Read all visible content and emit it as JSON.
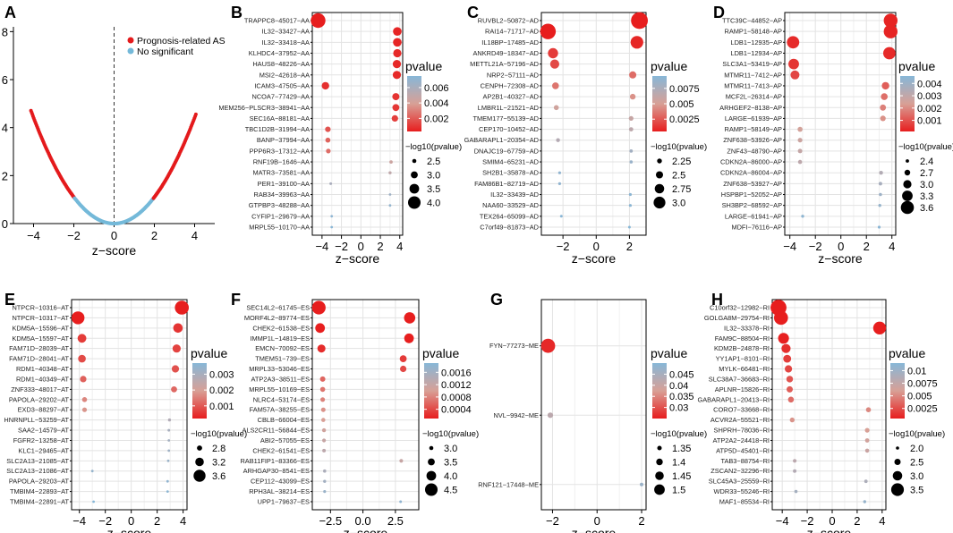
{
  "figure": {
    "legend_title": "pvalue",
    "size_title": "−log10(pvalue)",
    "xlabel": "z−score"
  },
  "chart_data": [
    {
      "panel": "A",
      "type": "scatter",
      "title": "A",
      "xlabel": "z−score",
      "ylabel": "",
      "xlim": [
        -5,
        5
      ],
      "ylim": [
        0,
        8.2
      ],
      "xticks": [
        -4,
        -2,
        0,
        2,
        4
      ],
      "yticks": [
        0,
        2,
        4,
        6,
        8
      ],
      "legend": [
        {
          "label": "Prognosis-related AS",
          "color": "#e41a1c"
        },
        {
          "label": "No significant",
          "color": "#74b9d9"
        }
      ],
      "curve": {
        "formula": "y = 0.276 * x^2",
        "left_extreme_x": -4.13,
        "right_extreme_x": 4.08,
        "threshold": 1.96
      }
    },
    {
      "panel": "B",
      "type": "scatter",
      "title": "B",
      "xlabel": "z−score",
      "xlim": [
        -5,
        4.3
      ],
      "xticks": [
        -4,
        -2,
        0,
        2,
        4
      ],
      "xtick_labels": [
        "−4",
        "−2",
        "0",
        "2",
        "4"
      ],
      "pvalue_ticks": [
        0.006,
        0.004,
        0.002
      ],
      "pvalue_range": [
        0.0003,
        0.0075
      ],
      "size_ticks": [
        2.5,
        3.0,
        3.5,
        4.0
      ],
      "size_range": [
        2.2,
        4.4
      ],
      "points": [
        {
          "label": "TRAPPC8−45017−AA",
          "z": -4.4,
          "p": 4e-05
        },
        {
          "label": "IL32−33427−AA",
          "z": 3.75,
          "p": 0.0005
        },
        {
          "label": "IL32−33418−AA",
          "z": 3.75,
          "p": 0.0005
        },
        {
          "label": "KLHDC4−37952−AA",
          "z": 3.75,
          "p": 0.0006
        },
        {
          "label": "HAUS8−48226−AA",
          "z": 3.7,
          "p": 0.0006
        },
        {
          "label": "MSI2−42618−AA",
          "z": 3.7,
          "p": 0.0006
        },
        {
          "label": "ICAM3−47505−AA",
          "z": -3.65,
          "p": 0.0008
        },
        {
          "label": "NCOA7−77429−AA",
          "z": 3.6,
          "p": 0.0009
        },
        {
          "label": "MEM256−PLSCR3−38941−AA",
          "z": 3.6,
          "p": 0.001
        },
        {
          "label": "SEC16A−88181−AA",
          "z": 3.5,
          "p": 0.0012
        },
        {
          "label": "TBC1D2B−31994−AA",
          "z": -3.4,
          "p": 0.0018
        },
        {
          "label": "BANP−37994−AA",
          "z": -3.4,
          "p": 0.0022
        },
        {
          "label": "PPP6R3−17312−AA",
          "z": -3.35,
          "p": 0.0025
        },
        {
          "label": "RNF19B−1646−AA",
          "z": 3.1,
          "p": 0.0045
        },
        {
          "label": "MATR3−73581−AA",
          "z": 3.0,
          "p": 0.005
        },
        {
          "label": "PER1−39100−AA",
          "z": -3.1,
          "p": 0.006
        },
        {
          "label": "RAB34−39963−AA",
          "z": 3.0,
          "p": 0.0065
        },
        {
          "label": "GTPBP3−48288−AA",
          "z": 3.0,
          "p": 0.007
        },
        {
          "label": "CYFIP1−29679−AA",
          "z": -3.0,
          "p": 0.0072
        },
        {
          "label": "MRPL55−10170−AA",
          "z": -3.0,
          "p": 0.0074
        }
      ]
    },
    {
      "panel": "C",
      "type": "scatter",
      "title": "C",
      "xlabel": "z−score",
      "xlim": [
        -3.3,
        3.0
      ],
      "xticks": [
        -2,
        0,
        2
      ],
      "xtick_labels": [
        "−2",
        "0",
        "2"
      ],
      "pvalue_ticks": [
        0.0075,
        0.005,
        0.0025
      ],
      "pvalue_range": [
        0.0005,
        0.0095
      ],
      "size_ticks": [
        2.25,
        2.5,
        2.75,
        3.0
      ],
      "size_range": [
        2.0,
        3.3
      ],
      "points": [
        {
          "label": "RUVBL2−50872−AD",
          "z": 2.6,
          "p": 0.0003
        },
        {
          "label": "RAI14−71717−AD",
          "z": -2.9,
          "p": 0.0004
        },
        {
          "label": "IL18BP−17485−AD",
          "z": 2.45,
          "p": 0.0008
        },
        {
          "label": "ANKRD49−18347−AD",
          "z": -2.6,
          "p": 0.0015
        },
        {
          "label": "METTL21A−57196−AD",
          "z": -2.5,
          "p": 0.002
        },
        {
          "label": "NRP2−57111−AD",
          "z": 2.2,
          "p": 0.0032
        },
        {
          "label": "CENPH−72308−AD",
          "z": -2.45,
          "p": 0.0035
        },
        {
          "label": "AP2B1−40327−AD",
          "z": 2.2,
          "p": 0.0045
        },
        {
          "label": "LMBR1L−21521−AD",
          "z": -2.4,
          "p": 0.0055
        },
        {
          "label": "TMEM177−55139−AD",
          "z": 2.1,
          "p": 0.006
        },
        {
          "label": "CEP170−10452−AD",
          "z": 2.1,
          "p": 0.0065
        },
        {
          "label": "GABARAPL1−20354−AD",
          "z": -2.3,
          "p": 0.007
        },
        {
          "label": "DNAJC19−67759−AD",
          "z": 2.1,
          "p": 0.008
        },
        {
          "label": "SMIM4−65231−AD",
          "z": 2.1,
          "p": 0.0085
        },
        {
          "label": "SH2B1−35878−AD",
          "z": -2.2,
          "p": 0.009
        },
        {
          "label": "FAM86B1−82719−AD",
          "z": -2.2,
          "p": 0.009
        },
        {
          "label": "IL32−33439−AD",
          "z": 2.05,
          "p": 0.0092
        },
        {
          "label": "NAA60−33529−AD",
          "z": 2.05,
          "p": 0.0093
        },
        {
          "label": "TEX264−65099−AD",
          "z": -2.1,
          "p": 0.0094
        },
        {
          "label": "C7orf49−81873−AD",
          "z": 2.0,
          "p": 0.0095
        }
      ]
    },
    {
      "panel": "D",
      "type": "scatter",
      "title": "D",
      "xlabel": "z−score",
      "xlim": [
        -4.4,
        4.3
      ],
      "xticks": [
        -4,
        -2,
        0,
        2,
        4
      ],
      "xtick_labels": [
        "−4",
        "−2",
        "0",
        "2",
        "4"
      ],
      "pvalue_ticks": [
        0.004,
        0.003,
        0.002,
        0.001
      ],
      "pvalue_range": [
        0.0001,
        0.0046
      ],
      "size_ticks": [
        2.4,
        2.7,
        3.0,
        3.3,
        3.6
      ],
      "size_range": [
        2.3,
        3.8
      ],
      "points": [
        {
          "label": "TTC39C−44852−AP",
          "z": 3.9,
          "p": 0.0002
        },
        {
          "label": "RAMP1−58148−AP",
          "z": 3.9,
          "p": 0.0002
        },
        {
          "label": "LDB1−12935−AP",
          "z": -3.75,
          "p": 0.0003
        },
        {
          "label": "LDB1−12934−AP",
          "z": 3.8,
          "p": 0.0003
        },
        {
          "label": "SLC3A1−53419−AP",
          "z": -3.7,
          "p": 0.0005
        },
        {
          "label": "MTMR11−7412−AP",
          "z": -3.6,
          "p": 0.0008
        },
        {
          "label": "MTMR11−7413−AP",
          "z": 3.5,
          "p": 0.0012
        },
        {
          "label": "MCF2L−26314−AP",
          "z": 3.4,
          "p": 0.0015
        },
        {
          "label": "ARHGEF2−8138−AP",
          "z": 3.3,
          "p": 0.0018
        },
        {
          "label": "LARGE−61939−AP",
          "z": 3.3,
          "p": 0.0021
        },
        {
          "label": "RAMP1−58149−AP",
          "z": -3.2,
          "p": 0.0025
        },
        {
          "label": "ZNF638−53926−AP",
          "z": -3.2,
          "p": 0.0027
        },
        {
          "label": "ZNF43−48790−AP",
          "z": -3.2,
          "p": 0.0029
        },
        {
          "label": "CDKN2A−86000−AP",
          "z": -3.2,
          "p": 0.0031
        },
        {
          "label": "CDKN2A−86004−AP",
          "z": 3.15,
          "p": 0.0034
        },
        {
          "label": "ZNF638−53927−AP",
          "z": 3.1,
          "p": 0.0037
        },
        {
          "label": "HSPBP1−52052−AP",
          "z": 3.1,
          "p": 0.004
        },
        {
          "label": "SH3BP2−68592−AP",
          "z": 3.05,
          "p": 0.0042
        },
        {
          "label": "LARGE−61941−AP",
          "z": -3.0,
          "p": 0.0044
        },
        {
          "label": "MDFI−76116−AP",
          "z": 3.0,
          "p": 0.0045
        }
      ]
    },
    {
      "panel": "E",
      "type": "scatter",
      "title": "E",
      "xlabel": "z−score",
      "xlim": [
        -4.6,
        4.3
      ],
      "xticks": [
        -4,
        -2,
        0,
        2,
        4
      ],
      "xtick_labels": [
        "−4",
        "−2",
        "0",
        "2",
        "4"
      ],
      "pvalue_ticks": [
        0.003,
        0.002,
        0.001
      ],
      "pvalue_range": [
        0.0002,
        0.0037
      ],
      "size_ticks": [
        2.8,
        3.2,
        3.6
      ],
      "size_range": [
        2.5,
        3.9
      ],
      "points": [
        {
          "label": "NTPCR−10316−AT",
          "z": 3.9,
          "p": 0.00015
        },
        {
          "label": "NTPCR−10317−AT",
          "z": -4.1,
          "p": 0.0002
        },
        {
          "label": "KDM5A−15596−AT",
          "z": 3.6,
          "p": 0.0005
        },
        {
          "label": "KDM5A−15597−AT",
          "z": -3.8,
          "p": 0.0006
        },
        {
          "label": "FAM71D−28039−AT",
          "z": 3.5,
          "p": 0.0007
        },
        {
          "label": "FAM71D−28041−AT",
          "z": -3.8,
          "p": 0.0008
        },
        {
          "label": "RDM1−40348−AT",
          "z": 3.4,
          "p": 0.0009
        },
        {
          "label": "RDM1−40349−AT",
          "z": -3.7,
          "p": 0.0011
        },
        {
          "label": "ZNF333−48017−AT",
          "z": 3.3,
          "p": 0.0012
        },
        {
          "label": "PAPOLA−29202−AT",
          "z": -3.6,
          "p": 0.0016
        },
        {
          "label": "EXD3−88297−AT",
          "z": -3.6,
          "p": 0.0018
        },
        {
          "label": "HNRNPLL−53259−AT",
          "z": 2.95,
          "p": 0.0028
        },
        {
          "label": "SAA2−14579−AT",
          "z": 2.9,
          "p": 0.003
        },
        {
          "label": "FGFR2−13258−AT",
          "z": 2.9,
          "p": 0.0031
        },
        {
          "label": "KLC1−29465−AT",
          "z": 2.9,
          "p": 0.0032
        },
        {
          "label": "SLC2A13−21085−AT",
          "z": 2.85,
          "p": 0.0033
        },
        {
          "label": "SLC2A13−21086−AT",
          "z": -3.0,
          "p": 0.0034
        },
        {
          "label": "PAPOLA−29203−AT",
          "z": 2.8,
          "p": 0.0035
        },
        {
          "label": "TMBIM4−22893−AT",
          "z": 2.8,
          "p": 0.0036
        },
        {
          "label": "TMBIM4−22891−AT",
          "z": -2.9,
          "p": 0.0037
        }
      ]
    },
    {
      "panel": "F",
      "type": "scatter",
      "title": "F",
      "xlabel": "z−score",
      "xlim": [
        -3.9,
        4.3
      ],
      "xticks": [
        -2.5,
        0.0,
        2.5
      ],
      "xtick_labels": [
        "−2.5",
        "0.0",
        "2.5"
      ],
      "pvalue_ticks": [
        0.0016,
        0.0012,
        0.0008,
        0.0004
      ],
      "pvalue_range": [
        0.0001,
        0.0019
      ],
      "size_ticks": [
        3.0,
        3.5,
        4.0,
        4.5
      ],
      "size_range": [
        2.7,
        4.9
      ],
      "points": [
        {
          "label": "SEC14L2−61745−ES",
          "z": -3.4,
          "p": 2e-05
        },
        {
          "label": "MORF4L2−89774−ES",
          "z": 3.6,
          "p": 5e-05
        },
        {
          "label": "CHEK2−61538−ES",
          "z": -3.3,
          "p": 0.0001
        },
        {
          "label": "IMMP1L−14819−ES",
          "z": 3.55,
          "p": 0.0001
        },
        {
          "label": "EMCN−70092−ES",
          "z": -3.2,
          "p": 0.0002
        },
        {
          "label": "TMEM51−739−ES",
          "z": 3.1,
          "p": 0.0003
        },
        {
          "label": "MRPL33−53046−ES",
          "z": 3.1,
          "p": 0.0004
        },
        {
          "label": "ATP2A3−38511−ES",
          "z": -3.1,
          "p": 0.0006
        },
        {
          "label": "MRPL55−10169−ES",
          "z": -3.1,
          "p": 0.0007
        },
        {
          "label": "NLRC4−53174−ES",
          "z": -3.1,
          "p": 0.0008
        },
        {
          "label": "FAM57A−38255−ES",
          "z": -3.05,
          "p": 0.0009
        },
        {
          "label": "CBLB−66004−ES",
          "z": -3.05,
          "p": 0.001
        },
        {
          "label": "ALS2CR11−56844−ES",
          "z": -3.0,
          "p": 0.0011
        },
        {
          "label": "ABI2−57055−ES",
          "z": -3.0,
          "p": 0.0012
        },
        {
          "label": "CHEK2−61541−ES",
          "z": -3.0,
          "p": 0.0013
        },
        {
          "label": "RAB11FIP1−83366−ES",
          "z": 2.95,
          "p": 0.0012
        },
        {
          "label": "ARHGAP30−8541−ES",
          "z": -2.95,
          "p": 0.0015
        },
        {
          "label": "CEP112−43099−ES",
          "z": -2.95,
          "p": 0.0016
        },
        {
          "label": "RPH3AL−38214−ES",
          "z": -2.95,
          "p": 0.0017
        },
        {
          "label": "UPP1−79637−ES",
          "z": 2.9,
          "p": 0.0018
        }
      ]
    },
    {
      "panel": "G",
      "type": "scatter",
      "title": "G",
      "xlabel": "z−score",
      "xlim": [
        -2.5,
        2.2
      ],
      "xticks": [
        -2,
        0,
        2
      ],
      "xtick_labels": [
        "−2",
        "0",
        "2"
      ],
      "pvalue_ticks": [
        0.045,
        0.04,
        0.035,
        0.03
      ],
      "pvalue_range": [
        0.025,
        0.05
      ],
      "size_ticks": [
        1.35,
        1.4,
        1.45,
        1.5
      ],
      "size_range": [
        1.3,
        1.6
      ],
      "points": [
        {
          "label": "FYN−77273−ME",
          "z": -2.2,
          "p": 0.026
        },
        {
          "label": "NVL−9942−ME",
          "z": -2.1,
          "p": 0.042
        },
        {
          "label": "RNF121−17448−ME",
          "z": 2.0,
          "p": 0.047
        }
      ]
    },
    {
      "panel": "H",
      "type": "scatter",
      "title": "H",
      "xlabel": "z−score",
      "xlim": [
        -4.8,
        4.3
      ],
      "xticks": [
        -4,
        -2,
        0,
        2,
        4
      ],
      "xtick_labels": [
        "−4",
        "−2",
        "0",
        "2",
        "4"
      ],
      "pvalue_ticks": [
        0.01,
        0.0075,
        0.005,
        0.0025
      ],
      "pvalue_range": [
        0.0005,
        0.0115
      ],
      "size_ticks": [
        2.0,
        2.5,
        3.0,
        3.5
      ],
      "size_range": [
        1.9,
        3.8
      ],
      "points": [
        {
          "label": "C10orf32−12982−RI",
          "z": -4.3,
          "p": 0.0001
        },
        {
          "label": "GOLGA8M−29754−RI",
          "z": -4.1,
          "p": 0.0002
        },
        {
          "label": "IL32−33378−RI",
          "z": 3.8,
          "p": 0.0003
        },
        {
          "label": "FAM9C−88504−RI",
          "z": -3.9,
          "p": 0.0006
        },
        {
          "label": "KDM2B−24878−RI",
          "z": -3.7,
          "p": 0.0012
        },
        {
          "label": "YY1AP1−8101−RI",
          "z": -3.6,
          "p": 0.0018
        },
        {
          "label": "MYLK−66481−RI",
          "z": -3.5,
          "p": 0.0022
        },
        {
          "label": "SLC38A7−36683−RI",
          "z": -3.4,
          "p": 0.0028
        },
        {
          "label": "APLNR−15826−RI",
          "z": -3.4,
          "p": 0.0032
        },
        {
          "label": "GABARAPL1−20413−RI",
          "z": -3.3,
          "p": 0.0038
        },
        {
          "label": "CORO7−33668−RI",
          "z": 2.9,
          "p": 0.005
        },
        {
          "label": "ACVR2A−55521−RI",
          "z": -3.2,
          "p": 0.0055
        },
        {
          "label": "SHPRH−78036−RI",
          "z": 2.8,
          "p": 0.006
        },
        {
          "label": "ATP2A2−24418−RI",
          "z": 2.8,
          "p": 0.0065
        },
        {
          "label": "ATP5D−45401−RI",
          "z": 2.8,
          "p": 0.007
        },
        {
          "label": "TAB3−88754−RI",
          "z": -3.0,
          "p": 0.008
        },
        {
          "label": "ZSCAN2−32296−RI",
          "z": -3.0,
          "p": 0.0085
        },
        {
          "label": "SLC45A3−25559−RI",
          "z": 2.7,
          "p": 0.009
        },
        {
          "label": "WDR33−55246−RI",
          "z": -2.9,
          "p": 0.0095
        },
        {
          "label": "MAF1−85534−RI",
          "z": 2.6,
          "p": 0.0105
        }
      ]
    }
  ]
}
